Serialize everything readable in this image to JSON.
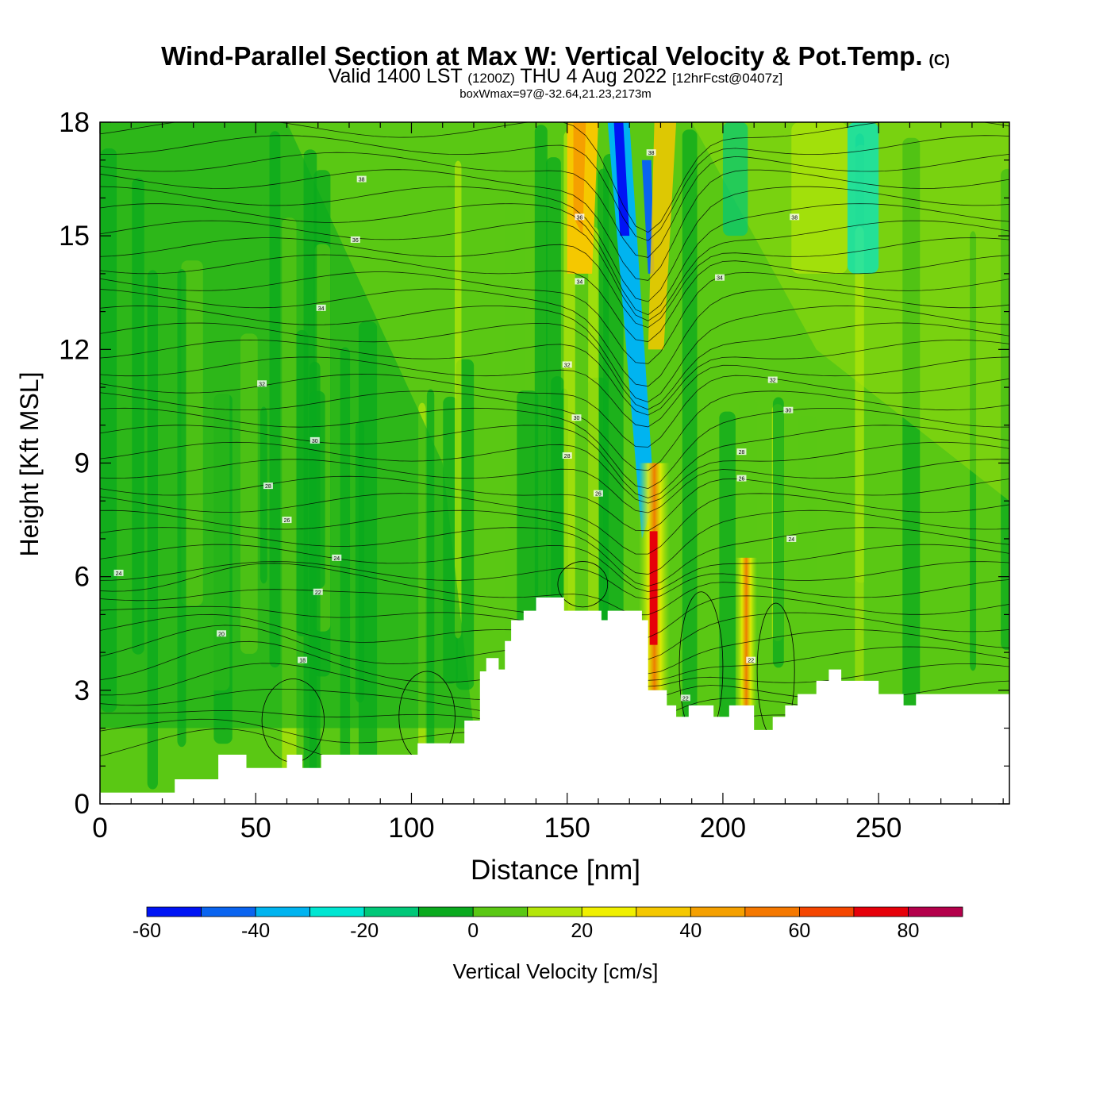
{
  "title": "Wind-Parallel Section at Max W: Vertical Velocity & Pot.Temp.",
  "title_mark": "(C)",
  "subtitle": {
    "valid": "Valid 1400 LST",
    "zulu": "(1200Z)",
    "date": "THU 4 Aug 2022",
    "forecast": "[12hrFcst@0407z]"
  },
  "box_label": "boxWmax=97@-32.64,21.23,2173m",
  "chart_data": {
    "type": "heatmap",
    "xlabel": "Distance [nm]",
    "ylabel": "Height [Kft MSL]",
    "xlim": [
      0,
      292
    ],
    "ylim": [
      0,
      18
    ],
    "xticks": [
      0,
      50,
      100,
      150,
      200,
      250
    ],
    "yticks": [
      0,
      3,
      6,
      9,
      12,
      15,
      18
    ],
    "colorbar": {
      "label": "Vertical Velocity [cm/s]",
      "bounds": [
        -60,
        -50,
        -40,
        -30,
        -20,
        -10,
        0,
        10,
        20,
        30,
        40,
        50,
        60,
        70,
        80,
        90
      ],
      "tick_values": [
        -60,
        -40,
        -20,
        0,
        20,
        40,
        60,
        80
      ],
      "colors": [
        "#0014f5",
        "#0a64f0",
        "#00b4f0",
        "#00e6d2",
        "#00c878",
        "#0aaa1e",
        "#5ac814",
        "#b4e60a",
        "#f0f000",
        "#f5c800",
        "#f5a000",
        "#f57800",
        "#f54600",
        "#e6000a",
        "#b4004b"
      ]
    },
    "terrain_kft": [
      [
        0,
        0.3
      ],
      [
        24,
        0.3
      ],
      [
        24,
        0.65
      ],
      [
        38,
        0.65
      ],
      [
        38,
        1.3
      ],
      [
        47,
        1.3
      ],
      [
        47,
        0.95
      ],
      [
        60,
        0.95
      ],
      [
        60,
        1.3
      ],
      [
        65,
        1.3
      ],
      [
        65,
        0.95
      ],
      [
        71,
        0.95
      ],
      [
        71,
        1.3
      ],
      [
        102,
        1.3
      ],
      [
        102,
        1.6
      ],
      [
        117,
        1.6
      ],
      [
        117,
        2.2
      ],
      [
        122,
        2.2
      ],
      [
        122,
        3.5
      ],
      [
        124,
        3.5
      ],
      [
        124,
        3.85
      ],
      [
        128,
        3.85
      ],
      [
        128,
        3.55
      ],
      [
        130,
        3.55
      ],
      [
        130,
        4.3
      ],
      [
        132,
        4.3
      ],
      [
        132,
        4.85
      ],
      [
        136,
        4.85
      ],
      [
        136,
        5.1
      ],
      [
        140,
        5.1
      ],
      [
        140,
        5.45
      ],
      [
        149,
        5.45
      ],
      [
        149,
        5.1
      ],
      [
        161,
        5.1
      ],
      [
        161,
        4.85
      ],
      [
        163,
        4.85
      ],
      [
        163,
        5.1
      ],
      [
        174,
        5.1
      ],
      [
        174,
        4.85
      ],
      [
        176,
        4.85
      ],
      [
        176,
        3.0
      ],
      [
        182,
        3.0
      ],
      [
        182,
        2.6
      ],
      [
        185,
        2.6
      ],
      [
        185,
        2.3
      ],
      [
        189,
        2.3
      ],
      [
        189,
        2.6
      ],
      [
        197,
        2.6
      ],
      [
        197,
        2.3
      ],
      [
        202,
        2.3
      ],
      [
        202,
        2.6
      ],
      [
        210,
        2.6
      ],
      [
        210,
        1.95
      ],
      [
        216,
        1.95
      ],
      [
        216,
        2.3
      ],
      [
        220,
        2.3
      ],
      [
        220,
        2.6
      ],
      [
        224,
        2.6
      ],
      [
        224,
        2.9
      ],
      [
        230,
        2.9
      ],
      [
        230,
        3.25
      ],
      [
        234,
        3.25
      ],
      [
        234,
        3.55
      ],
      [
        238,
        3.55
      ],
      [
        238,
        3.25
      ],
      [
        250,
        3.25
      ],
      [
        250,
        2.9
      ],
      [
        258,
        2.9
      ],
      [
        258,
        2.6
      ],
      [
        262,
        2.6
      ],
      [
        262,
        2.9
      ],
      [
        292,
        2.9
      ]
    ],
    "theta_labels": [
      {
        "x": 84,
        "y": 16.5,
        "t": "38"
      },
      {
        "x": 82,
        "y": 14.9,
        "t": "36"
      },
      {
        "x": 71,
        "y": 13.1,
        "t": "34"
      },
      {
        "x": 52,
        "y": 11.1,
        "t": "32"
      },
      {
        "x": 69,
        "y": 9.6,
        "t": "30"
      },
      {
        "x": 54,
        "y": 8.4,
        "t": "28"
      },
      {
        "x": 60,
        "y": 7.5,
        "t": "26"
      },
      {
        "x": 76,
        "y": 6.5,
        "t": "24"
      },
      {
        "x": 70,
        "y": 5.6,
        "t": "22"
      },
      {
        "x": 39,
        "y": 4.5,
        "t": "20"
      },
      {
        "x": 65,
        "y": 3.8,
        "t": "18"
      },
      {
        "x": 6,
        "y": 6.1,
        "t": "24"
      },
      {
        "x": 154,
        "y": 15.5,
        "t": "36"
      },
      {
        "x": 154,
        "y": 13.8,
        "t": "34"
      },
      {
        "x": 150,
        "y": 11.6,
        "t": "32"
      },
      {
        "x": 153,
        "y": 10.2,
        "t": "30"
      },
      {
        "x": 150,
        "y": 9.2,
        "t": "28"
      },
      {
        "x": 160,
        "y": 8.2,
        "t": "26"
      },
      {
        "x": 177,
        "y": 17.2,
        "t": "38"
      },
      {
        "x": 199,
        "y": 13.9,
        "t": "34"
      },
      {
        "x": 216,
        "y": 11.2,
        "t": "32"
      },
      {
        "x": 221,
        "y": 10.4,
        "t": "30"
      },
      {
        "x": 206,
        "y": 9.3,
        "t": "28"
      },
      {
        "x": 206,
        "y": 8.6,
        "t": "26"
      },
      {
        "x": 222,
        "y": 7.0,
        "t": "24"
      },
      {
        "x": 188,
        "y": 2.8,
        "t": "22"
      },
      {
        "x": 209,
        "y": 3.8,
        "t": "22"
      },
      {
        "x": 223,
        "y": 15.5,
        "t": "38"
      }
    ]
  }
}
